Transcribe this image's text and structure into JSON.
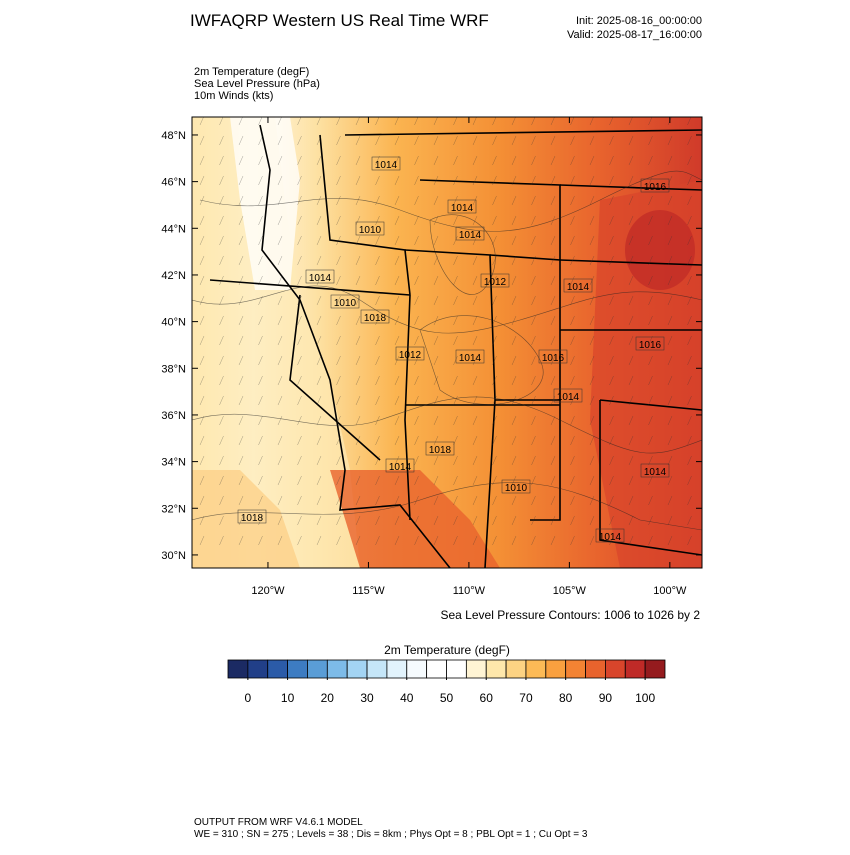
{
  "header": {
    "title": "IWFAQRP Western US Real Time WRF",
    "init": "Init: 2025-08-16_00:00:00",
    "valid": "Valid: 2025-08-17_16:00:00"
  },
  "fields": [
    "2m Temperature   (degF)",
    "Sea Level Pressure   (hPa)",
    "10m Winds   (kts)"
  ],
  "map": {
    "xlim": [
      -123.78,
      -98.4
    ],
    "ylim": [
      29.44,
      48.77
    ],
    "yticks": [
      {
        "value": 30,
        "label": "30°N"
      },
      {
        "value": 32,
        "label": "32°N"
      },
      {
        "value": 34,
        "label": "34°N"
      },
      {
        "value": 36,
        "label": "36°N"
      },
      {
        "value": 38,
        "label": "38°N"
      },
      {
        "value": 40,
        "label": "40°N"
      },
      {
        "value": 42,
        "label": "42°N"
      },
      {
        "value": 44,
        "label": "44°N"
      },
      {
        "value": 46,
        "label": "46°N"
      },
      {
        "value": 48,
        "label": "48°N"
      }
    ],
    "xticks": [
      {
        "value": -120,
        "label": "120°W"
      },
      {
        "value": -115,
        "label": "115°W"
      },
      {
        "value": -110,
        "label": "110°W"
      },
      {
        "value": -105,
        "label": "105°W"
      },
      {
        "value": -100,
        "label": "100°W"
      }
    ],
    "contour_labels": [
      "1014",
      "1016",
      "1014",
      "1010",
      "1014",
      "1014",
      "1012",
      "1014",
      "1010",
      "1018",
      "1016",
      "1012",
      "1014",
      "1016",
      "1014",
      "1018",
      "1014",
      "1010",
      "1014",
      "1014",
      "1018"
    ],
    "contour_note": "Sea Level Pressure Contours: 1006 to 1026 by 2"
  },
  "colorbar": {
    "title": "2m Temperature  (degF)",
    "lim": [
      -5,
      105
    ],
    "ticks": [
      0,
      10,
      20,
      30,
      40,
      50,
      60,
      70,
      80,
      90,
      100
    ],
    "colors": [
      "#1b2a63",
      "#213f88",
      "#2b5ba8",
      "#3d7cc2",
      "#5a9dd6",
      "#7dbbe8",
      "#a3d4f3",
      "#c5e6f8",
      "#e2f3fc",
      "#f6fbfe",
      "#ffffff",
      "#ffffff",
      "#fff4d4",
      "#fee7ab",
      "#fdd383",
      "#fcba56",
      "#f9a03f",
      "#f38333",
      "#e8632d",
      "#d8452b",
      "#bf2a27",
      "#951b1e"
    ]
  },
  "footer": [
    "OUTPUT FROM WRF V4.6.1 MODEL",
    "WE = 310 ; SN = 275 ; Levels = 38 ; Dis = 8km ; Phys Opt = 8 ; PBL Opt = 1 ; Cu Opt = 3"
  ]
}
